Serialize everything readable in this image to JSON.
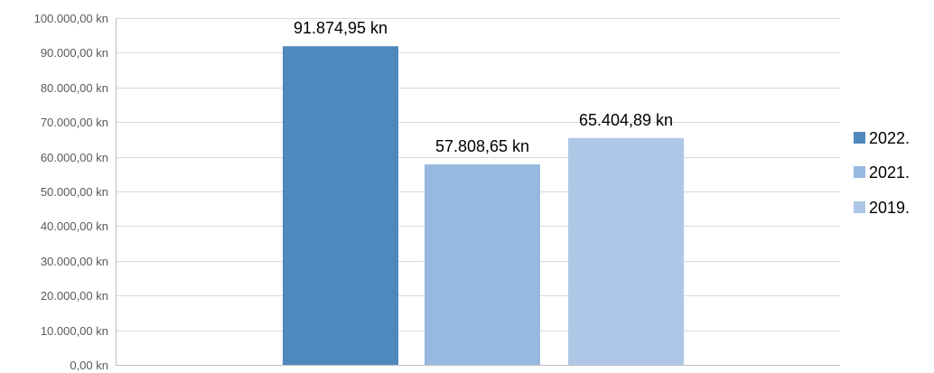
{
  "chart_data": {
    "type": "bar",
    "categories": [
      "2022.",
      "2021.",
      "2019."
    ],
    "values": [
      91874.95,
      57808.65,
      65404.89
    ],
    "data_labels": [
      "91.874,95 kn",
      "57.808,65 kn",
      "65.404,89 kn"
    ],
    "colors": [
      "#4f88bd",
      "#97b9e0",
      "#aec7e6"
    ],
    "ylim": [
      0,
      100000
    ],
    "y_ticks": [
      0,
      10000,
      20000,
      30000,
      40000,
      50000,
      60000,
      70000,
      80000,
      90000,
      100000
    ],
    "y_tick_labels": [
      "0,00 kn",
      "10.000,00 kn",
      "20.000,00 kn",
      "30.000,00 kn",
      "40.000,00 kn",
      "50.000,00 kn",
      "60.000,00 kn",
      "70.000,00 kn",
      "80.000,00 kn",
      "90.000,00 kn",
      "100.000,00 kn"
    ],
    "grid": true,
    "legend": {
      "position": "right",
      "entries": [
        "2022.",
        "2021.",
        "2019."
      ]
    },
    "title": "",
    "xlabel": "",
    "ylabel": ""
  }
}
